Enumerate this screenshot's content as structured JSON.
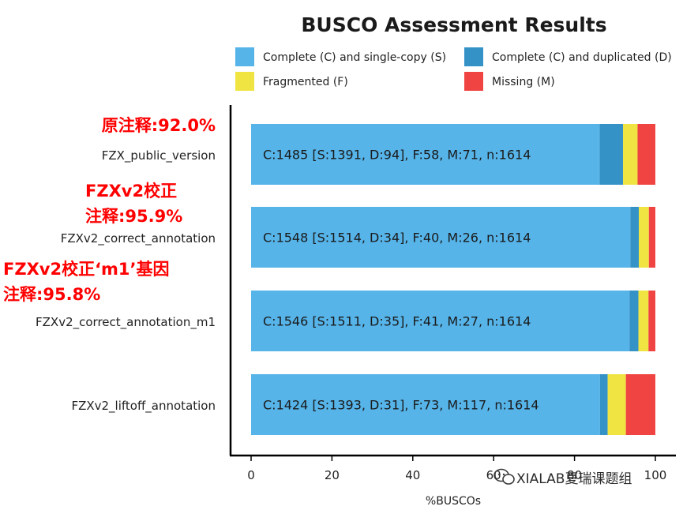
{
  "chart_data": {
    "type": "bar",
    "orientation": "horizontal",
    "stacked": true,
    "title": "BUSCO Assessment Results",
    "xlabel": "%BUSCOs",
    "xlim": [
      0,
      100
    ],
    "xticks": [
      0,
      20,
      40,
      60,
      80,
      100
    ],
    "categories": [
      "FZX_public_version",
      "FZXv2_correct_annotation",
      "FZXv2_correct_annotation_m1",
      "FZXv2_liftoff_annotation"
    ],
    "series": [
      {
        "name": "Complete (C) and single-copy (S)",
        "color": "#56b4e9",
        "values": [
          86.2,
          93.8,
          93.6,
          86.3
        ]
      },
      {
        "name": "Complete (C) and duplicated (D)",
        "color": "#3492c7",
        "values": [
          5.8,
          2.1,
          2.2,
          1.9
        ]
      },
      {
        "name": "Fragmented (F)",
        "color": "#f0e442",
        "values": [
          3.6,
          2.5,
          2.5,
          4.5
        ]
      },
      {
        "name": "Missing (M)",
        "color": "#f04442",
        "values": [
          4.4,
          1.6,
          1.7,
          7.3
        ]
      }
    ],
    "bar_labels": [
      "C:1485 [S:1391, D:94], F:58, M:71, n:1614",
      "C:1548 [S:1514, D:34], F:40, M:26, n:1614",
      "C:1546 [S:1511, D:35], F:41, M:27, n:1614",
      "C:1424 [S:1393, D:31], F:73, M:117, n:1614"
    ],
    "legend_position": "top",
    "grid": false
  },
  "annotations": {
    "note_1": [
      "原注释:92.0%"
    ],
    "note_2": [
      "FZXv2校正",
      "注释:95.9%"
    ],
    "note_3": [
      "FZXv2校正‘m1’基因",
      "注释:95.8%"
    ]
  },
  "watermark": {
    "icon": "wechat-icon",
    "text": "XIALAB夏瑞课题组"
  }
}
